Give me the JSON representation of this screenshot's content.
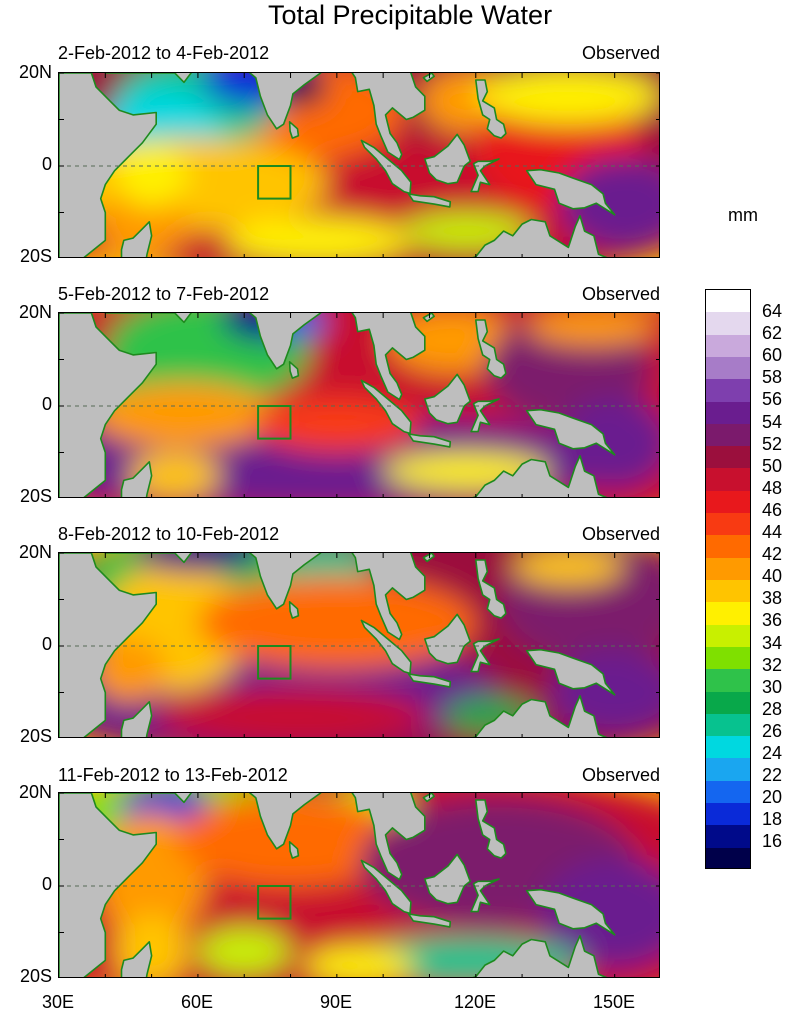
{
  "title": "Total Precipitable Water",
  "unit": "mm",
  "panels": [
    {
      "date_range": "2-Feb-2012 to 4-Feb-2012",
      "status": "Observed"
    },
    {
      "date_range": "5-Feb-2012 to 7-Feb-2012",
      "status": "Observed"
    },
    {
      "date_range": "8-Feb-2012 to 10-Feb-2012",
      "status": "Observed"
    },
    {
      "date_range": "11-Feb-2012 to 13-Feb-2012",
      "status": "Observed"
    }
  ],
  "latitude_labels": [
    "20N",
    "0",
    "20S"
  ],
  "longitude_labels": [
    "30E",
    "60E",
    "90E",
    "120E",
    "150E"
  ],
  "colorbar": {
    "labels": [
      "64",
      "62",
      "60",
      "58",
      "56",
      "54",
      "52",
      "50",
      "48",
      "46",
      "44",
      "42",
      "40",
      "38",
      "36",
      "34",
      "32",
      "30",
      "28",
      "26",
      "24",
      "22",
      "20",
      "18",
      "16"
    ],
    "colors_top_to_bottom": [
      "#ffffff",
      "#e4d8ee",
      "#c9a9dc",
      "#a77cc8",
      "#7e3fae",
      "#6a1d8f",
      "#7b1a6c",
      "#9b0f3d",
      "#c8102e",
      "#e8181c",
      "#f83a12",
      "#ff6a00",
      "#ff9a00",
      "#ffc400",
      "#fff000",
      "#c8f000",
      "#7fe000",
      "#2fc24a",
      "#08a84a",
      "#07c28f",
      "#00d8e0",
      "#1aa6f0",
      "#1466f0",
      "#0a2ad8",
      "#000a8a",
      "#00004a"
    ]
  },
  "colors": {
    "land": "#bebebe",
    "coast": "#1e8a1e",
    "box": "#1e8a1e"
  }
}
